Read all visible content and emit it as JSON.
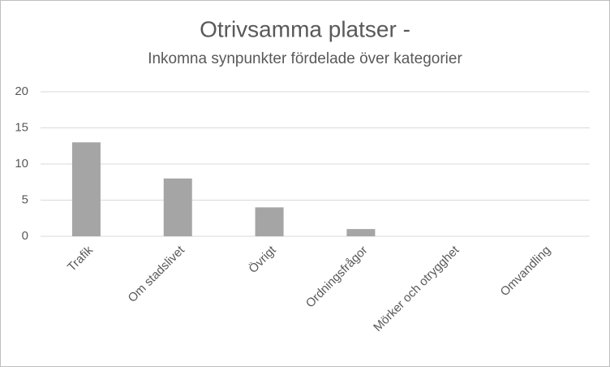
{
  "chart_data": {
    "type": "bar",
    "title": "Otrivsamma platser -",
    "subtitle": "Inkomna synpunkter fördelade över kategorier",
    "categories": [
      "Trafik",
      "Om stadslivet",
      "Övrigt",
      "Ordningsfrågor",
      "Mörker och otrygghet",
      "Omvandling"
    ],
    "values": [
      13,
      8,
      4,
      1,
      0,
      0
    ],
    "color": "#a5a5a5",
    "ylim": [
      0,
      20
    ],
    "yticks": [
      0,
      5,
      10,
      15,
      20
    ],
    "grid": true
  }
}
